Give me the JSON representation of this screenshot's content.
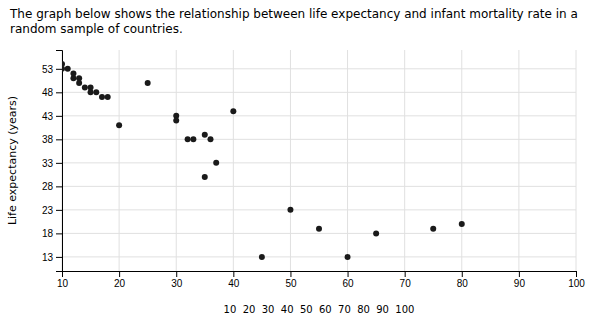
{
  "chart_data": {
    "type": "scatter",
    "title": "The graph below shows the relationship between life expectancy and infant mortality rate in a random sample of countries.",
    "ylabel": "Life expectancy (years)",
    "xlabel": "10  20  30  40  50  60  70  80  90  100",
    "x": [
      10,
      10,
      11,
      12,
      12,
      13,
      13,
      14,
      15,
      15,
      16,
      17,
      18,
      20,
      25,
      30,
      30,
      32,
      33,
      35,
      36,
      37,
      40,
      35,
      45,
      50,
      55,
      60,
      65,
      75,
      80
    ],
    "values": [
      54,
      53,
      53,
      52,
      51,
      51,
      50,
      49,
      49,
      48,
      48,
      47,
      47,
      41,
      50,
      43,
      42,
      38,
      38,
      39,
      38,
      33,
      44,
      30,
      13,
      23,
      19,
      13,
      18,
      19,
      20
    ],
    "color": "#1a1a1a",
    "xlim": [
      10,
      100
    ],
    "ylim": [
      10,
      57
    ],
    "xticks": [
      10,
      20,
      30,
      40,
      50,
      60,
      70,
      80,
      90,
      100
    ],
    "yticks": [
      13,
      18,
      23,
      28,
      33,
      38,
      43,
      48,
      53
    ],
    "grid": true
  }
}
